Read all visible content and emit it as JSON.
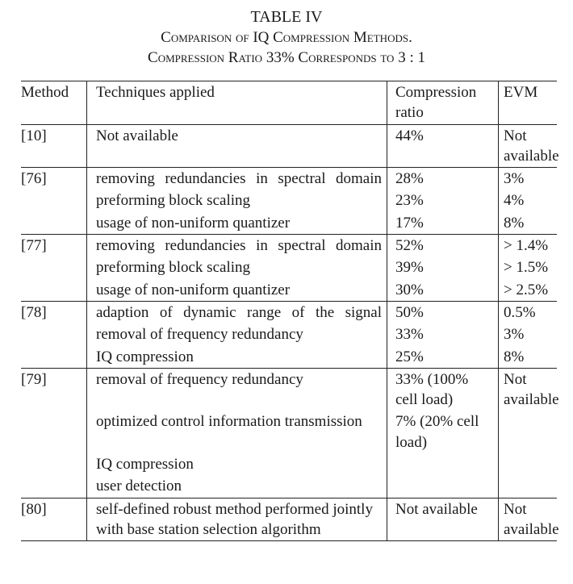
{
  "caption": {
    "line1": "TABLE IV",
    "line2": "Comparison of IQ Compression Methods.",
    "line3": "Compression Ratio 33% Corresponds to 3 : 1"
  },
  "headers": {
    "method": "Method",
    "techniques": "Techniques applied",
    "ratio": "Compression ratio",
    "evm": "EVM"
  },
  "groups": [
    {
      "method": "[10]",
      "rows": [
        {
          "tech": "Not available",
          "ratio": "44%",
          "evm": "Not available"
        }
      ]
    },
    {
      "method": "[76]",
      "rows": [
        {
          "tech": "removing redundancies in spectral domain",
          "ratio": "28%",
          "evm": "3%"
        },
        {
          "tech": "preforming block scaling",
          "ratio": "23%",
          "evm": "4%"
        },
        {
          "tech": "usage of non-uniform quantizer",
          "ratio": "17%",
          "evm": "8%"
        }
      ]
    },
    {
      "method": "[77]",
      "rows": [
        {
          "tech": "removing redundancies in spectral domain",
          "ratio": "52%",
          "evm": "> 1.4%"
        },
        {
          "tech": "preforming block scaling",
          "ratio": "39%",
          "evm": "> 1.5%"
        },
        {
          "tech": "usage of non-uniform quantizer",
          "ratio": "30%",
          "evm": "> 2.5%"
        }
      ]
    },
    {
      "method": "[78]",
      "rows": [
        {
          "tech": "adaption of dynamic range of the signal",
          "ratio": "50%",
          "evm": "0.5%"
        },
        {
          "tech": "removal of frequency redundancy",
          "ratio": "33%",
          "evm": "3%"
        },
        {
          "tech": "IQ compression",
          "ratio": "25%",
          "evm": "8%"
        }
      ]
    },
    {
      "method": "[79]",
      "rows": [
        {
          "tech": "removal of frequency redundancy",
          "ratio": "33% (100% cell load)",
          "evm": "Not available"
        },
        {
          "tech": "optimized control information transmission",
          "ratio": "7% (20% cell load)",
          "evm": ""
        },
        {
          "tech": "IQ compression",
          "ratio": "",
          "evm": ""
        },
        {
          "tech": "user detection",
          "ratio": "",
          "evm": ""
        }
      ]
    },
    {
      "method": "[80]",
      "rows": [
        {
          "tech": "self-defined robust method performed jointly with base station selection algorithm",
          "ratio": "Not available",
          "evm": "Not available"
        }
      ]
    }
  ]
}
